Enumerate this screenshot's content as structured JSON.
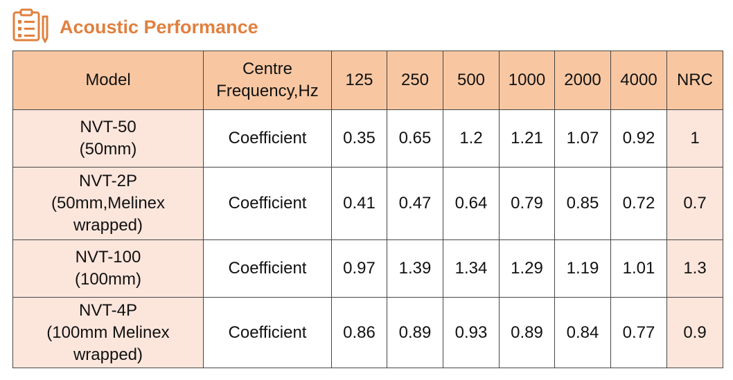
{
  "header": {
    "title": "Acoustic Performance"
  },
  "table": {
    "columns": [
      [
        "Model"
      ],
      [
        "Centre",
        "Frequency,Hz"
      ],
      [
        "125"
      ],
      [
        "250"
      ],
      [
        "500"
      ],
      [
        "1000"
      ],
      [
        "2000"
      ],
      [
        "4000"
      ],
      [
        "NRC"
      ]
    ],
    "rows": [
      {
        "model": [
          "NVT-50",
          "(50mm)"
        ],
        "label": "Coefficient",
        "values": [
          "0.35",
          "0.65",
          "1.2",
          "1.21",
          "1.07",
          "0.92",
          "1"
        ]
      },
      {
        "model": [
          "NVT-2P",
          "(50mm,Melinex",
          "wrapped)"
        ],
        "label": "Coefficient",
        "values": [
          "0.41",
          "0.47",
          "0.64",
          "0.79",
          "0.85",
          "0.72",
          "0.7"
        ]
      },
      {
        "model": [
          "NVT-100",
          "(100mm)"
        ],
        "label": "Coefficient",
        "values": [
          "0.97",
          "1.39",
          "1.34",
          "1.29",
          "1.19",
          "1.01",
          "1.3"
        ]
      },
      {
        "model": [
          "NVT-4P",
          "(100mm Melinex",
          "wrapped)"
        ],
        "label": "Coefficient",
        "values": [
          "0.86",
          "0.89",
          "0.93",
          "0.89",
          "0.84",
          "0.77",
          "0.9"
        ]
      }
    ]
  }
}
